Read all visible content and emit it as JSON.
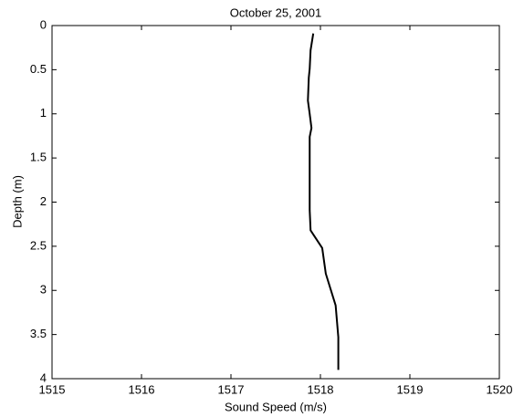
{
  "chart_data": {
    "type": "line",
    "title": "October 25, 2001",
    "x_label": "Sound Speed (m/s)",
    "y_label": "Depth (m)",
    "x": [
      1517.92,
      1517.89,
      1517.88,
      1517.87,
      1517.86,
      1517.88,
      1517.9,
      1517.88,
      1517.88,
      1517.88,
      1517.89,
      1518.02,
      1518.06,
      1518.17,
      1518.2,
      1518.2
    ],
    "values": [
      0.09,
      0.28,
      0.49,
      0.59,
      0.85,
      1.0,
      1.16,
      1.26,
      1.78,
      2.09,
      2.32,
      2.52,
      2.81,
      3.17,
      3.53,
      3.9
    ],
    "color": "#000000",
    "xlim": [
      1515,
      1520
    ],
    "xticks": [
      1515,
      1516,
      1517,
      1518,
      1519,
      1520
    ],
    "ylim": [
      0,
      4
    ],
    "yticks": [
      0,
      0.5,
      1,
      1.5,
      2,
      2.5,
      3,
      3.5,
      4
    ],
    "y_reversed": true
  }
}
